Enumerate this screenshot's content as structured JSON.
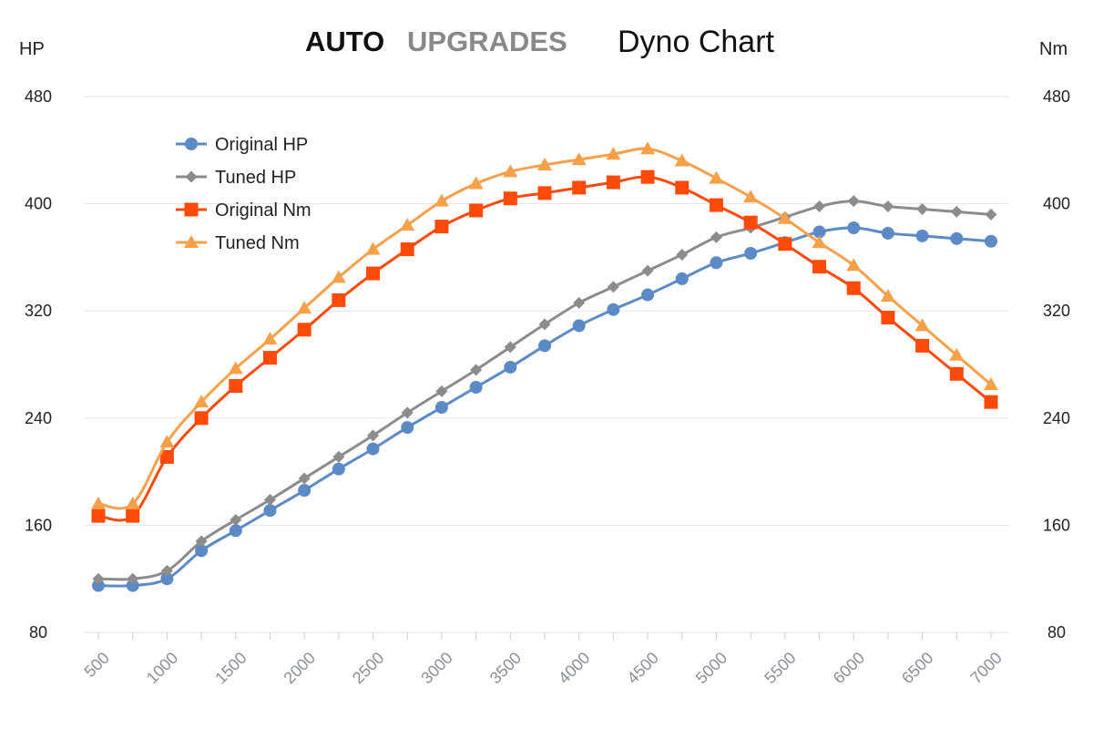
{
  "header": {
    "brand_main": "AUTO",
    "brand_accent": "UPGRADES",
    "title": "Dyno Chart"
  },
  "chart_data": {
    "type": "line",
    "title": "Dyno Chart",
    "y_left_label": "HP",
    "y_right_label": "Nm",
    "ylim": [
      80,
      480
    ],
    "y_ticks": [
      "480",
      "400",
      "320",
      "240",
      "160",
      "80"
    ],
    "x_ticks": [
      "500",
      "1000",
      "1500",
      "2000",
      "2500",
      "3000",
      "3500",
      "4000",
      "4500",
      "5000",
      "5500",
      "6000",
      "6500",
      "7000"
    ],
    "x": [
      500,
      750,
      1000,
      1250,
      1500,
      1750,
      2000,
      2250,
      2500,
      2750,
      3000,
      3250,
      3500,
      3750,
      4000,
      4250,
      4500,
      4750,
      5000,
      5250,
      5500,
      5750,
      6000,
      6250,
      6500,
      6750,
      7000
    ],
    "grid": true,
    "legend_position": "top-left",
    "series": [
      {
        "name": "Original HP",
        "color": "#5b8ac6",
        "marker": "circle",
        "values": [
          115,
          115,
          120,
          141,
          156,
          171,
          186,
          202,
          217,
          233,
          248,
          263,
          278,
          294,
          309,
          321,
          332,
          344,
          356,
          363,
          371,
          379,
          382,
          378,
          376,
          374,
          372
        ]
      },
      {
        "name": "Tuned HP",
        "color": "#8c8c8c",
        "marker": "diamond",
        "values": [
          120,
          120,
          126,
          148,
          164,
          179,
          195,
          211,
          227,
          244,
          260,
          276,
          293,
          310,
          326,
          338,
          350,
          362,
          375,
          382,
          390,
          398,
          402,
          398,
          396,
          394,
          392
        ]
      },
      {
        "name": "Original Nm",
        "color": "#ff4a0a",
        "marker": "square",
        "values": [
          167,
          167,
          211,
          240,
          264,
          285,
          306,
          328,
          348,
          366,
          383,
          395,
          404,
          408,
          412,
          416,
          420,
          412,
          399,
          386,
          370,
          353,
          337,
          315,
          294,
          273,
          252
        ]
      },
      {
        "name": "Tuned Nm",
        "color": "#f7a04a",
        "marker": "triangle",
        "values": [
          176,
          176,
          222,
          252,
          277,
          299,
          322,
          345,
          366,
          384,
          402,
          415,
          424,
          429,
          433,
          437,
          441,
          432,
          419,
          405,
          389,
          371,
          354,
          331,
          309,
          287,
          265
        ]
      }
    ]
  }
}
